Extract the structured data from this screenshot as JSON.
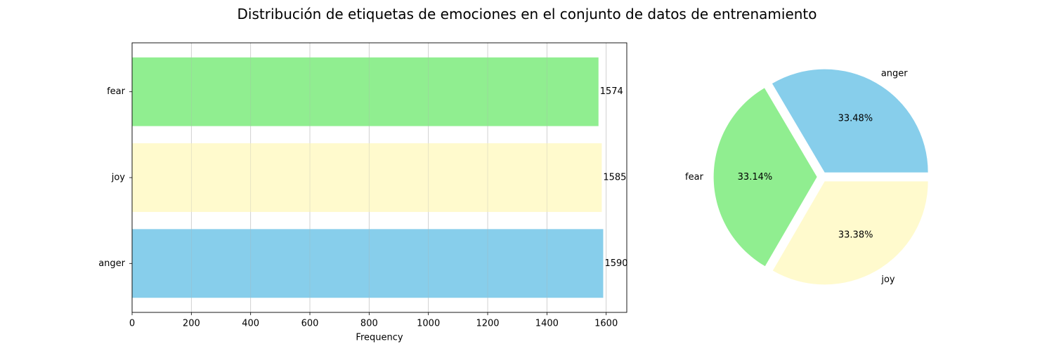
{
  "figure": {
    "title": "Distribución de etiquetas de emociones en el conjunto de datos de entrenamiento"
  },
  "chart_data": [
    {
      "type": "bar",
      "orientation": "horizontal",
      "categories": [
        "anger",
        "joy",
        "fear"
      ],
      "values": [
        1590,
        1585,
        1574
      ],
      "colors": [
        "#87ceeb",
        "#fffacd",
        "#90ee90"
      ],
      "xlabel": "Frequency",
      "ylabel": "",
      "xlim": [
        0,
        1669.5
      ],
      "xticks": [
        0,
        200,
        400,
        600,
        800,
        1000,
        1200,
        1400,
        1600
      ],
      "grid": "x",
      "data_labels": [
        "1590",
        "1585",
        "1574"
      ]
    },
    {
      "type": "pie",
      "labels": [
        "anger",
        "fear",
        "joy"
      ],
      "values": [
        1590,
        1574,
        1585
      ],
      "percent_labels": [
        "33.48%",
        "33.14%",
        "33.38%"
      ],
      "colors": [
        "#87ceeb",
        "#90ee90",
        "#fffacd"
      ],
      "explode": [
        0.05,
        0.05,
        0.05
      ],
      "start_angle": 0
    }
  ]
}
